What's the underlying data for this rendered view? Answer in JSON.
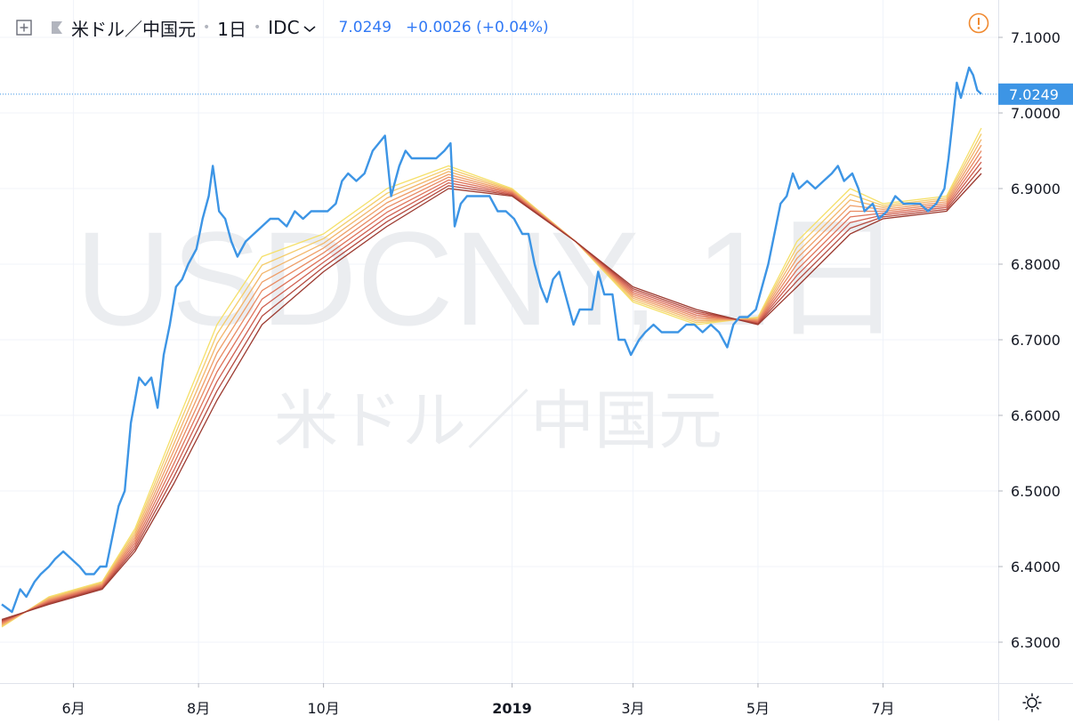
{
  "header": {
    "symbol": "米ドル／中国元",
    "interval": "1日",
    "source": "IDC",
    "last_price": "7.0249",
    "change": "+0.0026 (+0.04%)"
  },
  "watermark": {
    "ticker": "USDCNY, 1日",
    "name": "米ドル／中国元"
  },
  "colors": {
    "price_line": "#3d95e5",
    "ribbon": [
      "#f5e06a",
      "#f4cc6a",
      "#f3b56a",
      "#ef9e67",
      "#e98a62",
      "#df735a",
      "#cf5f50",
      "#b54a3f",
      "#9c3a30"
    ],
    "axis_text": "#131722",
    "grid": "#f0f3fa",
    "price_label_bg": "#3d95e5",
    "alert": "#f0892f"
  },
  "chart_data": {
    "type": "line",
    "title": "米ドル／中国元",
    "ylim": [
      6.25,
      7.15
    ],
    "y_ticks": [
      "7.1000",
      "7.0000",
      "6.9000",
      "6.8000",
      "6.7000",
      "6.6000",
      "6.5000",
      "6.4000",
      "6.3000"
    ],
    "y_tick_values": [
      7.1,
      7.0,
      6.9,
      6.8,
      6.7,
      6.6,
      6.5,
      6.4,
      6.3
    ],
    "x_ticks": [
      "6月",
      "8月",
      "10月",
      "2019",
      "3月",
      "5月",
      "7月"
    ],
    "x_tick_dates": [
      "2018-06-01",
      "2018-08-01",
      "2018-10-01",
      "2019-01-01",
      "2019-03-01",
      "2019-05-01",
      "2019-07-01"
    ],
    "last_price_label": "7.0249",
    "last_price_value": 7.0249,
    "series": [
      {
        "role": "price",
        "points": [
          [
            "2018-04-27",
            6.35
          ],
          [
            "2018-05-02",
            6.34
          ],
          [
            "2018-05-06",
            6.37
          ],
          [
            "2018-05-09",
            6.36
          ],
          [
            "2018-05-13",
            6.38
          ],
          [
            "2018-05-16",
            6.39
          ],
          [
            "2018-05-20",
            6.4
          ],
          [
            "2018-05-23",
            6.41
          ],
          [
            "2018-05-27",
            6.42
          ],
          [
            "2018-05-31",
            6.41
          ],
          [
            "2018-06-04",
            6.4
          ],
          [
            "2018-06-07",
            6.39
          ],
          [
            "2018-06-11",
            6.39
          ],
          [
            "2018-06-14",
            6.4
          ],
          [
            "2018-06-17",
            6.4
          ],
          [
            "2018-06-20",
            6.44
          ],
          [
            "2018-06-23",
            6.48
          ],
          [
            "2018-06-26",
            6.5
          ],
          [
            "2018-06-29",
            6.59
          ],
          [
            "2018-07-03",
            6.65
          ],
          [
            "2018-07-06",
            6.64
          ],
          [
            "2018-07-09",
            6.65
          ],
          [
            "2018-07-12",
            6.61
          ],
          [
            "2018-07-15",
            6.68
          ],
          [
            "2018-07-18",
            6.72
          ],
          [
            "2018-07-21",
            6.77
          ],
          [
            "2018-07-24",
            6.78
          ],
          [
            "2018-07-27",
            6.8
          ],
          [
            "2018-07-31",
            6.82
          ],
          [
            "2018-08-03",
            6.86
          ],
          [
            "2018-08-06",
            6.89
          ],
          [
            "2018-08-08",
            6.93
          ],
          [
            "2018-08-11",
            6.87
          ],
          [
            "2018-08-14",
            6.86
          ],
          [
            "2018-08-17",
            6.83
          ],
          [
            "2018-08-20",
            6.81
          ],
          [
            "2018-08-24",
            6.83
          ],
          [
            "2018-08-28",
            6.84
          ],
          [
            "2018-09-01",
            6.85
          ],
          [
            "2018-09-05",
            6.86
          ],
          [
            "2018-09-09",
            6.86
          ],
          [
            "2018-09-13",
            6.85
          ],
          [
            "2018-09-17",
            6.87
          ],
          [
            "2018-09-21",
            6.86
          ],
          [
            "2018-09-25",
            6.87
          ],
          [
            "2018-09-29",
            6.87
          ],
          [
            "2018-10-03",
            6.87
          ],
          [
            "2018-10-07",
            6.88
          ],
          [
            "2018-10-10",
            6.91
          ],
          [
            "2018-10-13",
            6.92
          ],
          [
            "2018-10-17",
            6.91
          ],
          [
            "2018-10-21",
            6.92
          ],
          [
            "2018-10-25",
            6.95
          ],
          [
            "2018-10-28",
            6.96
          ],
          [
            "2018-10-31",
            6.97
          ],
          [
            "2018-11-03",
            6.89
          ],
          [
            "2018-11-07",
            6.93
          ],
          [
            "2018-11-10",
            6.95
          ],
          [
            "2018-11-13",
            6.94
          ],
          [
            "2018-11-17",
            6.94
          ],
          [
            "2018-11-21",
            6.94
          ],
          [
            "2018-11-25",
            6.94
          ],
          [
            "2018-11-29",
            6.95
          ],
          [
            "2018-12-02",
            6.96
          ],
          [
            "2018-12-04",
            6.85
          ],
          [
            "2018-12-07",
            6.88
          ],
          [
            "2018-12-10",
            6.89
          ],
          [
            "2018-12-13",
            6.89
          ],
          [
            "2018-12-17",
            6.89
          ],
          [
            "2018-12-21",
            6.89
          ],
          [
            "2018-12-25",
            6.87
          ],
          [
            "2018-12-29",
            6.87
          ],
          [
            "2019-01-02",
            6.86
          ],
          [
            "2019-01-06",
            6.84
          ],
          [
            "2019-01-09",
            6.84
          ],
          [
            "2019-01-12",
            6.8
          ],
          [
            "2019-01-15",
            6.77
          ],
          [
            "2019-01-18",
            6.75
          ],
          [
            "2019-01-21",
            6.78
          ],
          [
            "2019-01-24",
            6.79
          ],
          [
            "2019-01-28",
            6.75
          ],
          [
            "2019-01-31",
            6.72
          ],
          [
            "2019-02-03",
            6.74
          ],
          [
            "2019-02-06",
            6.74
          ],
          [
            "2019-02-09",
            6.74
          ],
          [
            "2019-02-12",
            6.79
          ],
          [
            "2019-02-15",
            6.76
          ],
          [
            "2019-02-19",
            6.76
          ],
          [
            "2019-02-22",
            6.7
          ],
          [
            "2019-02-25",
            6.7
          ],
          [
            "2019-02-28",
            6.68
          ],
          [
            "2019-03-04",
            6.7
          ],
          [
            "2019-03-07",
            6.71
          ],
          [
            "2019-03-11",
            6.72
          ],
          [
            "2019-03-15",
            6.71
          ],
          [
            "2019-03-19",
            6.71
          ],
          [
            "2019-03-23",
            6.71
          ],
          [
            "2019-03-27",
            6.72
          ],
          [
            "2019-03-31",
            6.72
          ],
          [
            "2019-04-04",
            6.71
          ],
          [
            "2019-04-08",
            6.72
          ],
          [
            "2019-04-12",
            6.71
          ],
          [
            "2019-04-16",
            6.69
          ],
          [
            "2019-04-19",
            6.72
          ],
          [
            "2019-04-22",
            6.73
          ],
          [
            "2019-04-26",
            6.73
          ],
          [
            "2019-04-30",
            6.74
          ],
          [
            "2019-05-03",
            6.77
          ],
          [
            "2019-05-06",
            6.8
          ],
          [
            "2019-05-09",
            6.84
          ],
          [
            "2019-05-12",
            6.88
          ],
          [
            "2019-05-15",
            6.89
          ],
          [
            "2019-05-18",
            6.92
          ],
          [
            "2019-05-21",
            6.9
          ],
          [
            "2019-05-25",
            6.91
          ],
          [
            "2019-05-29",
            6.9
          ],
          [
            "2019-06-02",
            6.91
          ],
          [
            "2019-06-06",
            6.92
          ],
          [
            "2019-06-09",
            6.93
          ],
          [
            "2019-06-12",
            6.91
          ],
          [
            "2019-06-16",
            6.92
          ],
          [
            "2019-06-19",
            6.9
          ],
          [
            "2019-06-22",
            6.87
          ],
          [
            "2019-06-26",
            6.88
          ],
          [
            "2019-06-29",
            6.86
          ],
          [
            "2019-07-03",
            6.87
          ],
          [
            "2019-07-07",
            6.89
          ],
          [
            "2019-07-11",
            6.88
          ],
          [
            "2019-07-15",
            6.88
          ],
          [
            "2019-07-19",
            6.88
          ],
          [
            "2019-07-23",
            6.87
          ],
          [
            "2019-07-27",
            6.88
          ],
          [
            "2019-07-31",
            6.9
          ],
          [
            "2019-08-02",
            6.94
          ],
          [
            "2019-08-04",
            6.99
          ],
          [
            "2019-08-06",
            7.04
          ],
          [
            "2019-08-08",
            7.02
          ],
          [
            "2019-08-10",
            7.04
          ],
          [
            "2019-08-12",
            7.06
          ],
          [
            "2019-08-14",
            7.05
          ],
          [
            "2019-08-16",
            7.03
          ],
          [
            "2019-08-18",
            7.0249
          ]
        ]
      },
      {
        "role": "ribbon-upper",
        "points": [
          [
            "2018-04-27",
            6.32
          ],
          [
            "2018-05-20",
            6.36
          ],
          [
            "2018-06-15",
            6.38
          ],
          [
            "2018-07-01",
            6.45
          ],
          [
            "2018-07-20",
            6.58
          ],
          [
            "2018-08-10",
            6.72
          ],
          [
            "2018-09-01",
            6.81
          ],
          [
            "2018-10-01",
            6.84
          ],
          [
            "2018-11-01",
            6.9
          ],
          [
            "2018-12-01",
            6.93
          ],
          [
            "2019-01-01",
            6.9
          ],
          [
            "2019-02-01",
            6.83
          ],
          [
            "2019-03-01",
            6.75
          ],
          [
            "2019-04-01",
            6.72
          ],
          [
            "2019-05-01",
            6.73
          ],
          [
            "2019-05-20",
            6.83
          ],
          [
            "2019-06-15",
            6.9
          ],
          [
            "2019-07-01",
            6.88
          ],
          [
            "2019-08-01",
            6.89
          ],
          [
            "2019-08-18",
            6.98
          ]
        ]
      },
      {
        "role": "ribbon-lower",
        "points": [
          [
            "2018-04-27",
            6.33
          ],
          [
            "2018-05-20",
            6.35
          ],
          [
            "2018-06-15",
            6.37
          ],
          [
            "2018-07-01",
            6.42
          ],
          [
            "2018-07-20",
            6.51
          ],
          [
            "2018-08-10",
            6.62
          ],
          [
            "2018-09-01",
            6.72
          ],
          [
            "2018-10-01",
            6.79
          ],
          [
            "2018-11-01",
            6.85
          ],
          [
            "2018-12-01",
            6.9
          ],
          [
            "2019-01-01",
            6.89
          ],
          [
            "2019-02-01",
            6.83
          ],
          [
            "2019-03-01",
            6.77
          ],
          [
            "2019-04-01",
            6.74
          ],
          [
            "2019-05-01",
            6.72
          ],
          [
            "2019-05-20",
            6.77
          ],
          [
            "2019-06-15",
            6.84
          ],
          [
            "2019-07-01",
            6.86
          ],
          [
            "2019-08-01",
            6.87
          ],
          [
            "2019-08-18",
            6.92
          ]
        ]
      }
    ]
  }
}
